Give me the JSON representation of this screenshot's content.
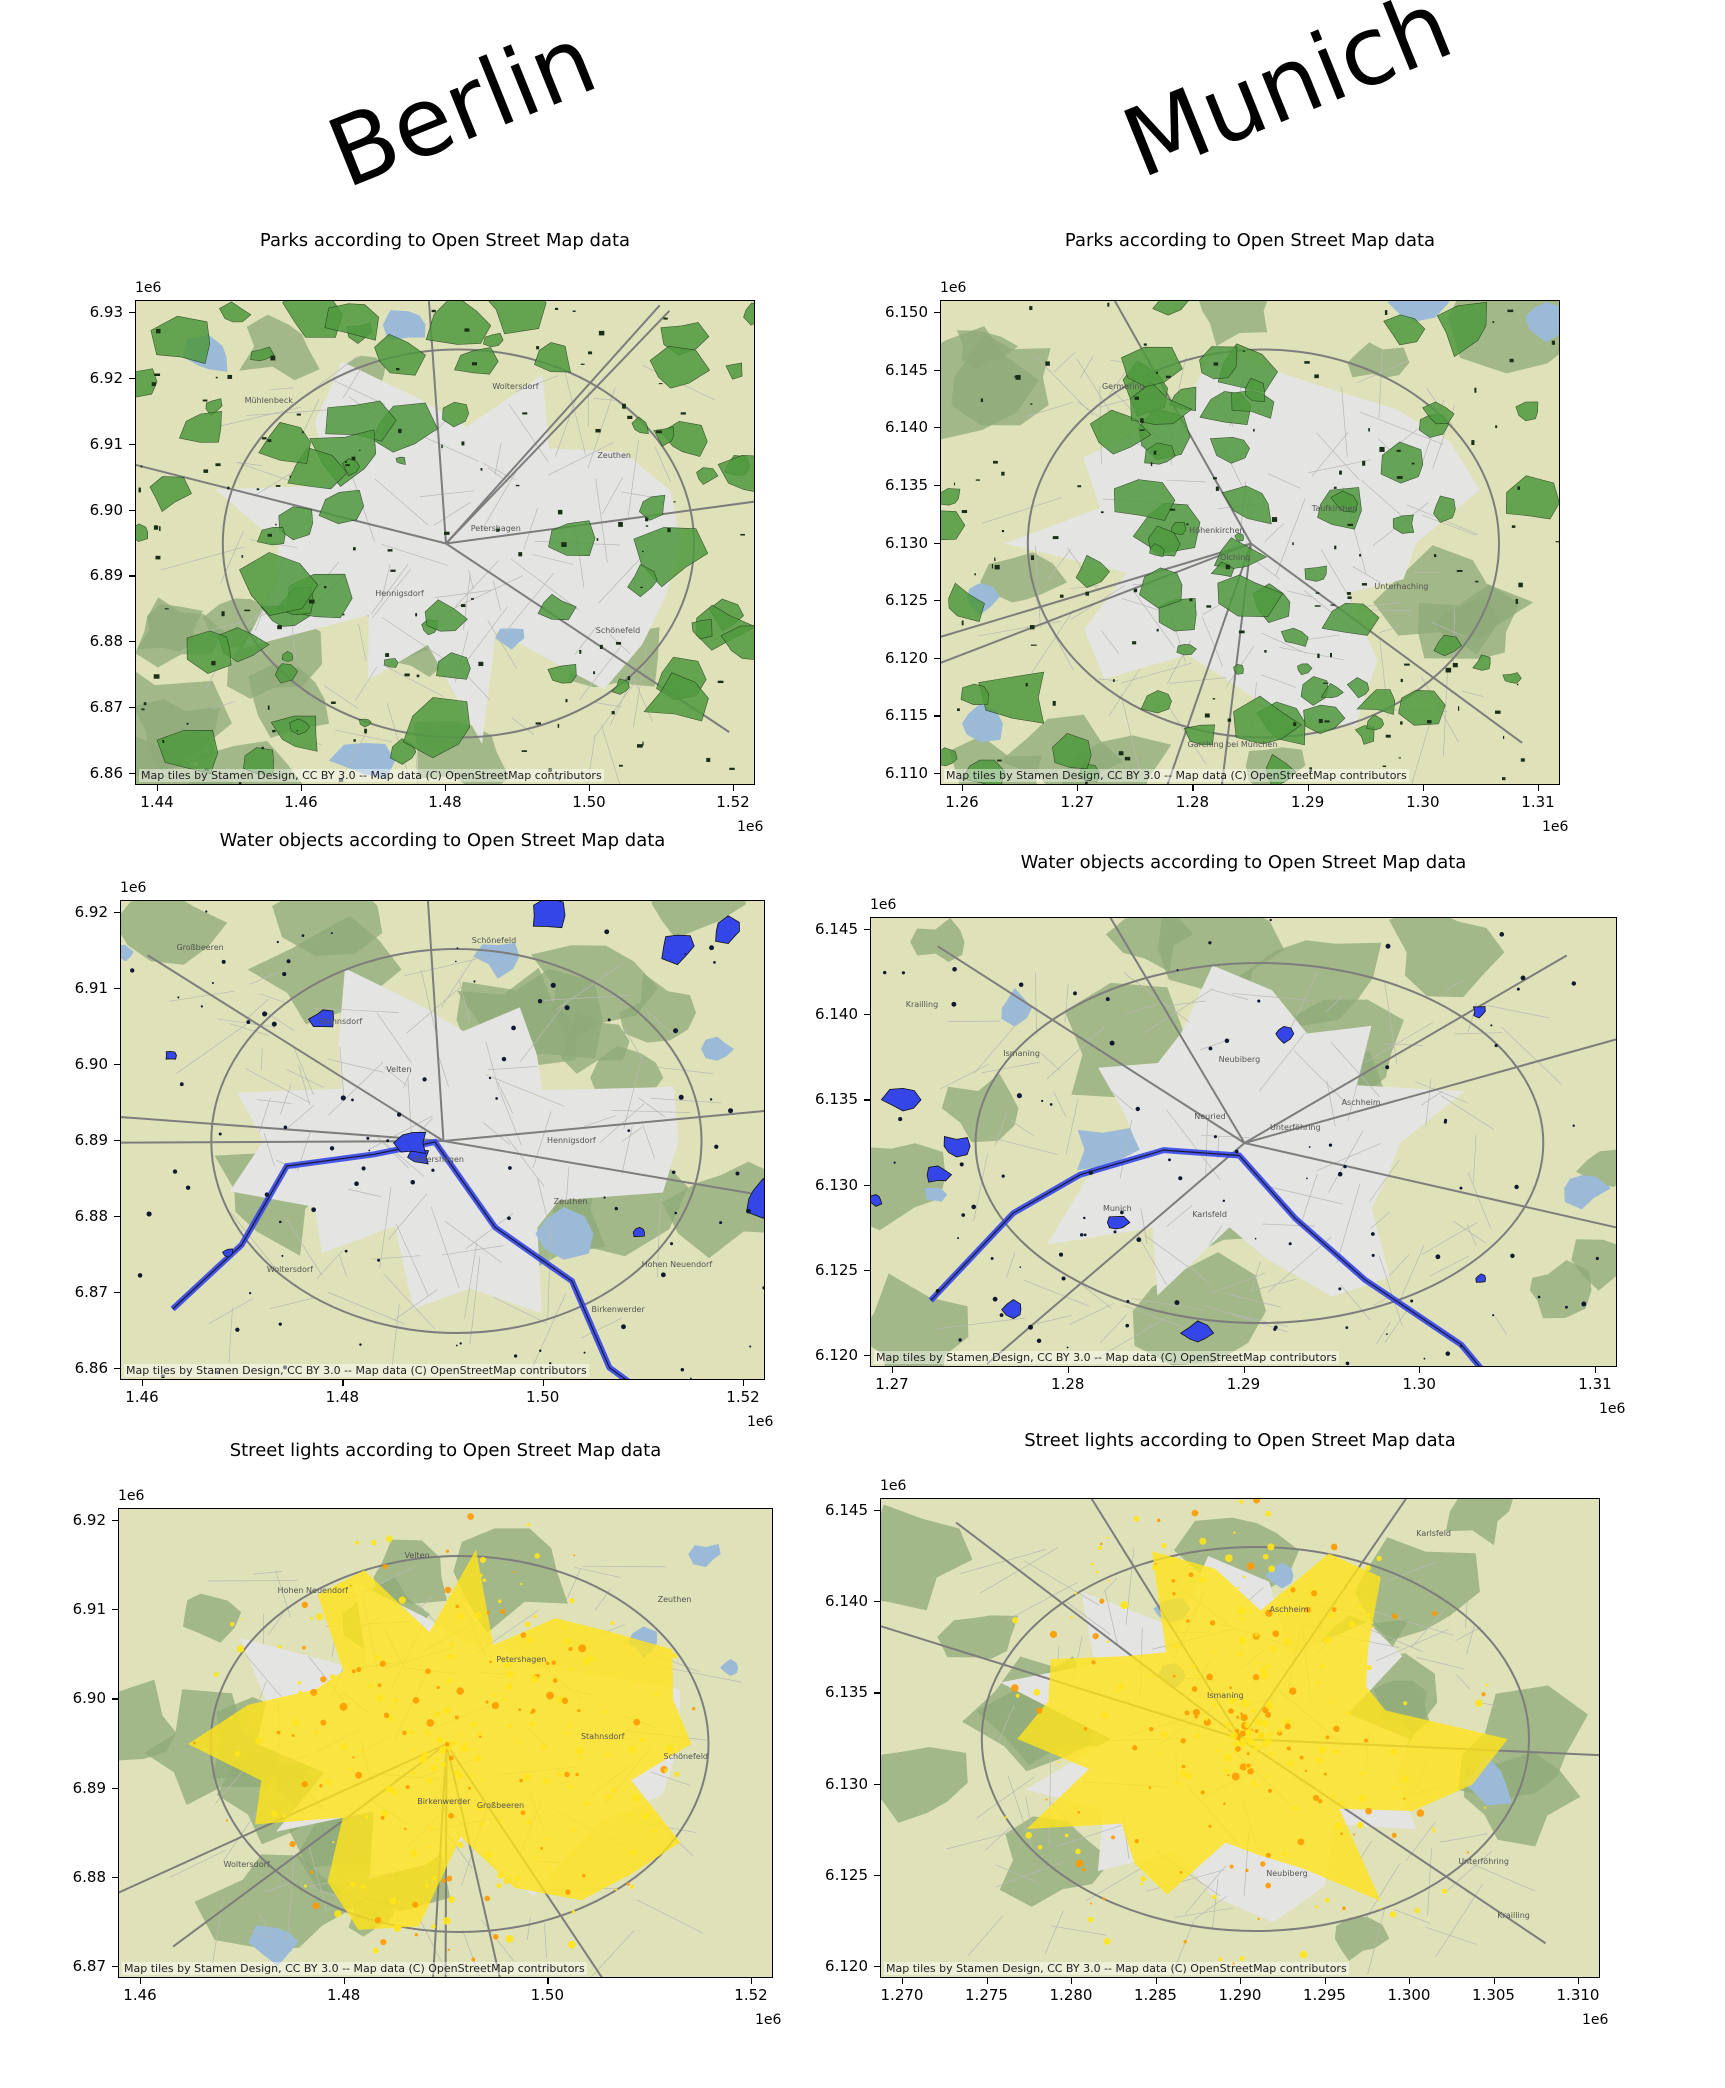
{
  "headers": {
    "left": "Berlin",
    "right": "Munich"
  },
  "attribution": "Map tiles by Stamen Design, CC BY 3.0 -- Map data (C) OpenStreetMap contributors",
  "colors": {
    "park_fill": "#4f9a3f",
    "water_fill": "#3446e8",
    "light_fill": "#ffe41a",
    "light_dense": "#ff9a00",
    "tile_base": "#dfe2b8",
    "tile_urban": "#e4e4e2",
    "tile_forest": "#8fa978",
    "tile_water": "#9bbad8"
  },
  "panels": [
    {
      "id": "berlin-parks",
      "city": "Berlin",
      "title": "Parks according to Open Street Map data",
      "layer": "parks",
      "y_exponent": "1e6",
      "x_exponent": "1e6",
      "y_ticks": [
        "6.93",
        "6.92",
        "6.91",
        "6.90",
        "6.89",
        "6.88",
        "6.87",
        "6.86"
      ],
      "x_ticks": [
        "1.44",
        "1.46",
        "1.48",
        "1.50",
        "1.52"
      ],
      "places": [
        "Hennigsdorf",
        "Mühlenbeck",
        "Petershagen",
        "Schönefeld",
        "Zeuthen",
        "Woltersdorf"
      ]
    },
    {
      "id": "munich-parks",
      "city": "Munich",
      "title": "Parks according to Open Street Map data",
      "layer": "parks",
      "y_exponent": "1e6",
      "x_exponent": "1e6",
      "y_ticks": [
        "6.150",
        "6.145",
        "6.140",
        "6.135",
        "6.130",
        "6.125",
        "6.120",
        "6.115",
        "6.110"
      ],
      "x_ticks": [
        "1.26",
        "1.27",
        "1.28",
        "1.29",
        "1.30",
        "1.31"
      ],
      "places": [
        "Garching bei München",
        "Olching",
        "Germering",
        "Unterhaching",
        "Taufkirchen",
        "Höhenkirchen"
      ]
    },
    {
      "id": "berlin-water",
      "city": "Berlin",
      "title": "Water objects according to Open Street Map data",
      "layer": "water",
      "y_exponent": "1e6",
      "x_exponent": "1e6",
      "y_ticks": [
        "6.92",
        "6.91",
        "6.90",
        "6.89",
        "6.88",
        "6.87",
        "6.86"
      ],
      "x_ticks": [
        "1.46",
        "1.48",
        "1.50",
        "1.52"
      ],
      "places": [
        "Velten",
        "Birkenwerder",
        "Hohen Neuendorf",
        "Hennigsdorf",
        "Petershagen",
        "Woltersdorf",
        "Stahnsdorf",
        "Großbeeren",
        "Schönefeld",
        "Zeuthen"
      ]
    },
    {
      "id": "munich-water",
      "city": "Munich",
      "title": "Water objects according to Open Street Map data",
      "layer": "water",
      "y_exponent": "1e6",
      "x_exponent": "1e6",
      "y_ticks": [
        "6.145",
        "6.140",
        "6.135",
        "6.130",
        "6.125",
        "6.120"
      ],
      "x_ticks": [
        "1.27",
        "1.28",
        "1.29",
        "1.30",
        "1.31"
      ],
      "places": [
        "Karlsfeld",
        "Ismaning",
        "Unterföhring",
        "Aschheim",
        "Munich",
        "Krailling",
        "Neuried",
        "Neubiberg"
      ]
    },
    {
      "id": "berlin-lights",
      "city": "Berlin",
      "title": "Street lights according to Open Street Map data",
      "layer": "lights",
      "y_exponent": "1e6",
      "x_exponent": "1e6",
      "y_ticks": [
        "6.92",
        "6.91",
        "6.90",
        "6.89",
        "6.88",
        "6.87"
      ],
      "x_ticks": [
        "1.46",
        "1.48",
        "1.50",
        "1.52"
      ],
      "places": [
        "Velten",
        "Birkenwerder",
        "Hohen Neuendorf",
        "Petershagen",
        "Woltersdorf",
        "Stahnsdorf",
        "Großbeeren",
        "Schönefeld",
        "Zeuthen"
      ]
    },
    {
      "id": "munich-lights",
      "city": "Munich",
      "title": "Street lights according to Open Street Map data",
      "layer": "lights",
      "y_exponent": "1e6",
      "x_exponent": "1e6",
      "y_ticks": [
        "6.145",
        "6.140",
        "6.135",
        "6.130",
        "6.125",
        "6.120"
      ],
      "x_ticks": [
        "1.270",
        "1.275",
        "1.280",
        "1.285",
        "1.290",
        "1.295",
        "1.300",
        "1.305",
        "1.310"
      ],
      "places": [
        "Ismaning",
        "Karlsfeld",
        "Unterföhring",
        "Aschheim",
        "Krailling",
        "Neubiberg"
      ]
    }
  ]
}
